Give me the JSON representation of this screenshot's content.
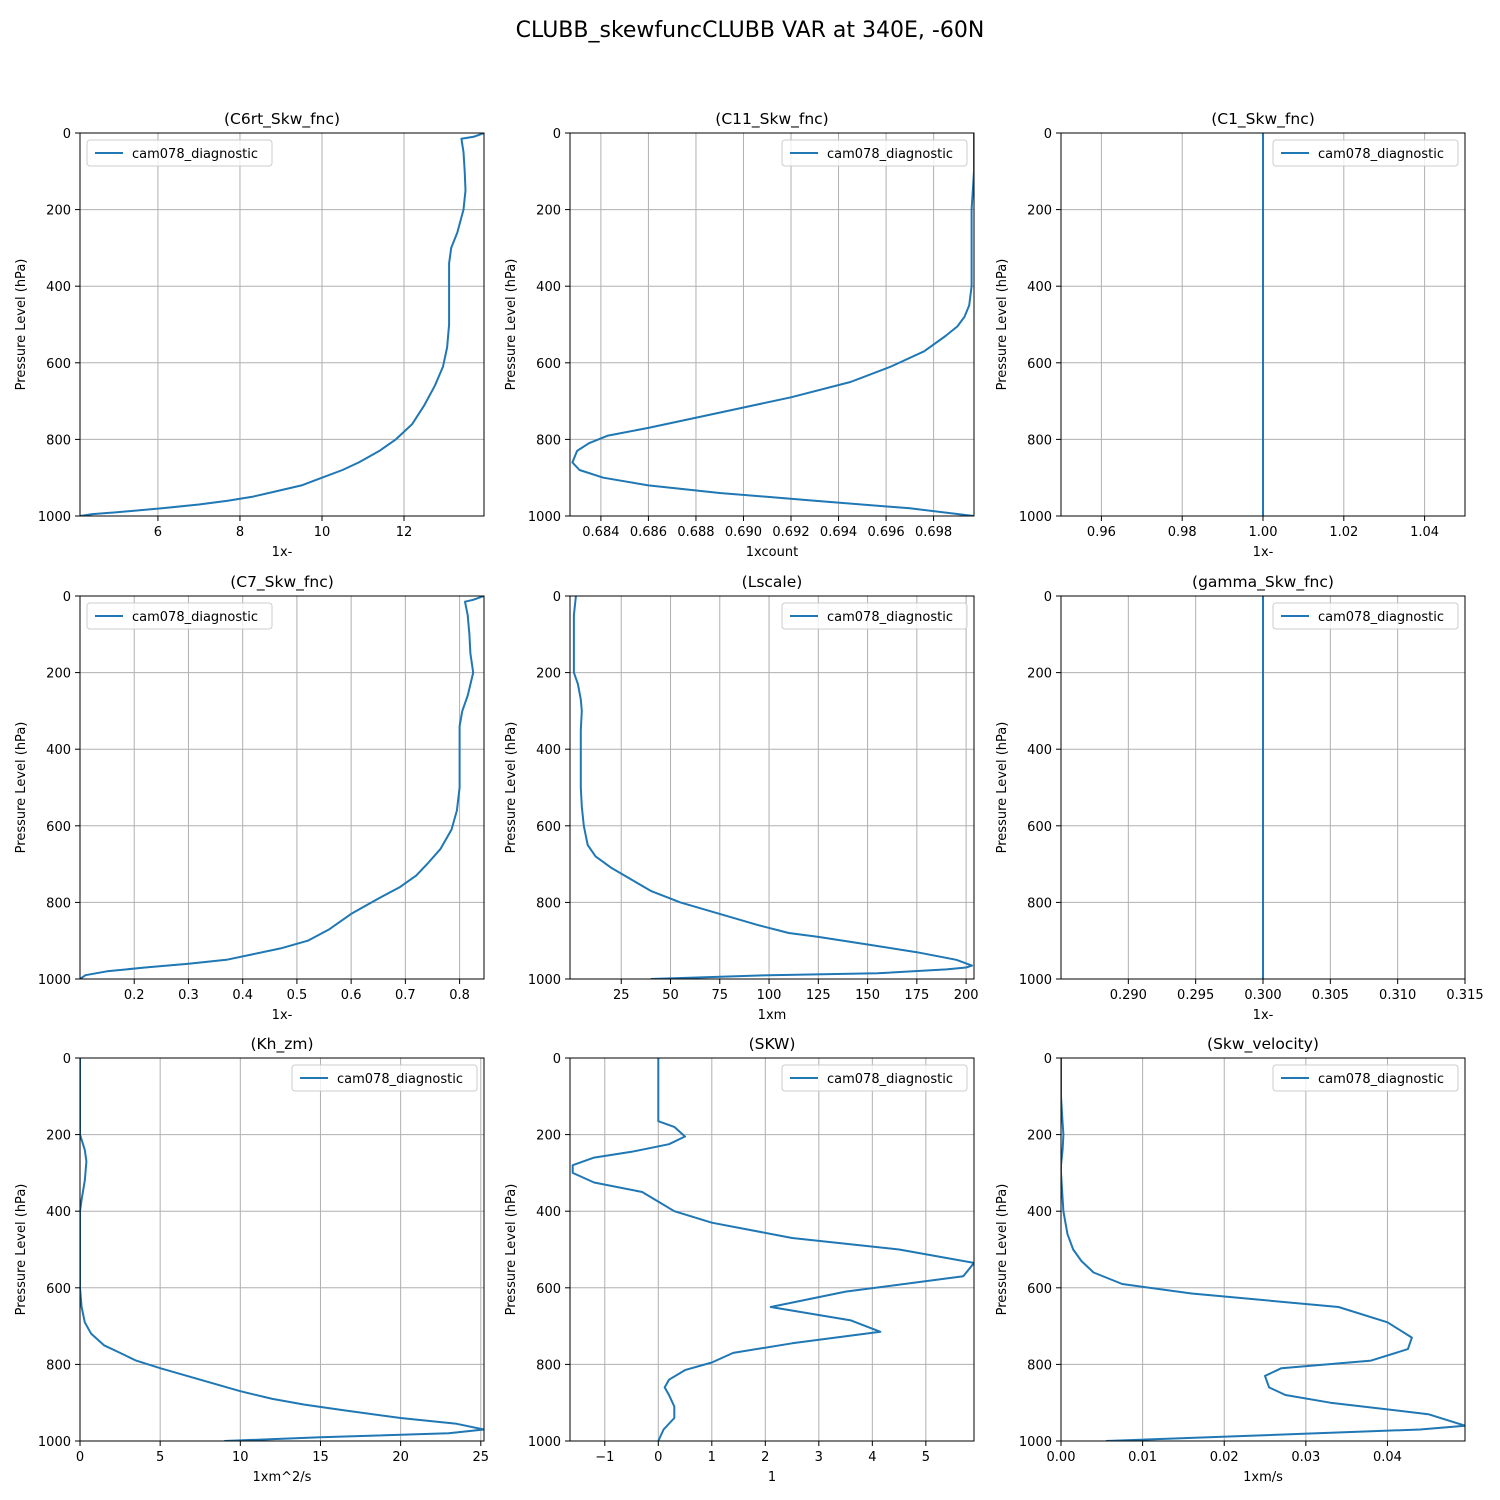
{
  "figure": {
    "suptitle": "CLUBB_skewfuncCLUBB VAR at 340E, -60N",
    "line_color": "#1f77b4",
    "grid_color": "#b0b0b0"
  },
  "chart_data": [
    {
      "type": "line",
      "title": "(C6rt_Skw_fnc)",
      "xlabel": "1x-",
      "ylabel": "Pressure Level (hPa)",
      "xlim": [
        4.1,
        13.95
      ],
      "ylim": [
        1000,
        0
      ],
      "xticks": [
        6,
        8,
        10,
        12
      ],
      "xticklabels": [
        "6",
        "8",
        "10",
        "12"
      ],
      "yticks": [
        0,
        200,
        400,
        600,
        800,
        1000
      ],
      "yticklabels": [
        "0",
        "200",
        "400",
        "600",
        "800",
        "1000"
      ],
      "grid": true,
      "legend_loc": "upper left",
      "series": [
        {
          "name": "cam078_diagnostic",
          "x": [
            13.95,
            13.7,
            13.4,
            13.45,
            13.48,
            13.5,
            13.45,
            13.3,
            13.15,
            13.1,
            13.1,
            13.1,
            13.1,
            13.05,
            12.95,
            12.75,
            12.5,
            12.2,
            11.8,
            11.4,
            10.9,
            10.5,
            10.0,
            9.5,
            8.9,
            8.3,
            7.7,
            7.0,
            6.1,
            5.0,
            4.4,
            4.1
          ],
          "y": [
            0,
            10,
            15,
            50,
            100,
            150,
            200,
            260,
            300,
            340,
            400,
            450,
            500,
            560,
            610,
            660,
            710,
            760,
            800,
            830,
            860,
            880,
            900,
            920,
            935,
            950,
            960,
            970,
            980,
            990,
            995,
            1000
          ]
        }
      ]
    },
    {
      "type": "line",
      "title": "(C11_Skw_fnc)",
      "xlabel": "1xcount",
      "ylabel": "Pressure Level (hPa)",
      "xlim": [
        0.6827,
        0.6997
      ],
      "ylim": [
        1000,
        0
      ],
      "xticks": [
        0.684,
        0.686,
        0.688,
        0.69,
        0.692,
        0.694,
        0.696,
        0.698
      ],
      "xticklabels": [
        "0.684",
        "0.686",
        "0.688",
        "0.690",
        "0.692",
        "0.694",
        "0.696",
        "0.698"
      ],
      "yticks": [
        0,
        200,
        400,
        600,
        800,
        1000
      ],
      "yticklabels": [
        "0",
        "200",
        "400",
        "600",
        "800",
        "1000"
      ],
      "grid": true,
      "legend_loc": "upper right",
      "series": [
        {
          "name": "cam078_diagnostic",
          "x": [
            0.6997,
            0.6997,
            0.6996,
            0.6996,
            0.6996,
            0.6995,
            0.6993,
            0.699,
            0.6985,
            0.6976,
            0.6962,
            0.6945,
            0.692,
            0.689,
            0.686,
            0.6843,
            0.6835,
            0.683,
            0.6828,
            0.6831,
            0.6841,
            0.686,
            0.689,
            0.693,
            0.697,
            0.6997
          ],
          "y": [
            0,
            100,
            200,
            300,
            400,
            450,
            480,
            505,
            530,
            570,
            610,
            650,
            690,
            730,
            770,
            790,
            810,
            830,
            860,
            880,
            900,
            920,
            940,
            960,
            980,
            1000
          ]
        }
      ]
    },
    {
      "type": "line",
      "title": "(C1_Skw_fnc)",
      "xlabel": "1x-",
      "ylabel": "Pressure Level (hPa)",
      "xlim": [
        0.95,
        1.05
      ],
      "ylim": [
        1000,
        0
      ],
      "xticks": [
        0.96,
        0.98,
        1.0,
        1.02,
        1.04
      ],
      "xticklabels": [
        "0.96",
        "0.98",
        "1.00",
        "1.02",
        "1.04"
      ],
      "yticks": [
        0,
        200,
        400,
        600,
        800,
        1000
      ],
      "yticklabels": [
        "0",
        "200",
        "400",
        "600",
        "800",
        "1000"
      ],
      "grid": true,
      "legend_loc": "upper right",
      "series": [
        {
          "name": "cam078_diagnostic",
          "x": [
            1.0,
            1.0
          ],
          "y": [
            0,
            1000
          ]
        }
      ]
    },
    {
      "type": "line",
      "title": "(C7_Skw_fnc)",
      "xlabel": "1x-",
      "ylabel": "Pressure Level (hPa)",
      "xlim": [
        0.1,
        0.845
      ],
      "ylim": [
        1000,
        0
      ],
      "xticks": [
        0.2,
        0.3,
        0.4,
        0.5,
        0.6,
        0.7,
        0.8
      ],
      "xticklabels": [
        "0.2",
        "0.3",
        "0.4",
        "0.5",
        "0.6",
        "0.7",
        "0.8"
      ],
      "yticks": [
        0,
        200,
        400,
        600,
        800,
        1000
      ],
      "yticklabels": [
        "0",
        "200",
        "400",
        "600",
        "800",
        "1000"
      ],
      "grid": true,
      "legend_loc": "upper left",
      "series": [
        {
          "name": "cam078_diagnostic",
          "x": [
            0.845,
            0.825,
            0.81,
            0.815,
            0.818,
            0.82,
            0.825,
            0.815,
            0.805,
            0.8,
            0.8,
            0.8,
            0.8,
            0.795,
            0.785,
            0.765,
            0.74,
            0.72,
            0.69,
            0.65,
            0.6,
            0.56,
            0.52,
            0.47,
            0.42,
            0.37,
            0.3,
            0.22,
            0.15,
            0.11,
            0.1
          ],
          "y": [
            0,
            10,
            15,
            50,
            100,
            150,
            200,
            260,
            300,
            340,
            400,
            450,
            500,
            560,
            610,
            660,
            700,
            730,
            760,
            790,
            830,
            870,
            900,
            920,
            935,
            950,
            960,
            970,
            980,
            990,
            1000
          ]
        }
      ]
    },
    {
      "type": "line",
      "title": "(Lscale)",
      "xlabel": "1xm",
      "ylabel": "Pressure Level (hPa)",
      "xlim": [
        -1,
        204
      ],
      "ylim": [
        1000,
        0
      ],
      "xticks": [
        25,
        50,
        75,
        100,
        125,
        150,
        175,
        200
      ],
      "xticklabels": [
        "25",
        "50",
        "75",
        "100",
        "125",
        "150",
        "175",
        "200"
      ],
      "yticks": [
        0,
        200,
        400,
        600,
        800,
        1000
      ],
      "yticklabels": [
        "0",
        "200",
        "400",
        "600",
        "800",
        "1000"
      ],
      "grid": true,
      "legend_loc": "upper right",
      "series": [
        {
          "name": "cam078_diagnostic",
          "x": [
            2,
            1,
            1,
            1,
            3,
            4.5,
            5,
            4.5,
            4.5,
            4.5,
            4.5,
            5,
            6,
            8,
            12,
            20,
            30,
            40,
            55,
            75,
            95,
            110,
            125,
            150,
            175,
            195,
            203,
            200,
            190,
            155,
            100,
            40
          ],
          "y": [
            0,
            50,
            100,
            200,
            230,
            270,
            300,
            350,
            400,
            450,
            500,
            550,
            600,
            650,
            680,
            710,
            740,
            770,
            800,
            830,
            860,
            880,
            890,
            910,
            930,
            950,
            965,
            970,
            975,
            985,
            990,
            1000
          ]
        }
      ]
    },
    {
      "type": "line",
      "title": "(gamma_Skw_fnc)",
      "xlabel": "1x-",
      "ylabel": "Pressure Level (hPa)",
      "xlim": [
        0.285,
        0.315
      ],
      "ylim": [
        1000,
        0
      ],
      "xticks": [
        0.29,
        0.295,
        0.3,
        0.305,
        0.31,
        0.315
      ],
      "xticklabels": [
        "0.290",
        "0.295",
        "0.300",
        "0.305",
        "0.310",
        "0.315"
      ],
      "yticks": [
        0,
        200,
        400,
        600,
        800,
        1000
      ],
      "yticklabels": [
        "0",
        "200",
        "400",
        "600",
        "800",
        "1000"
      ],
      "grid": true,
      "legend_loc": "upper right",
      "series": [
        {
          "name": "cam078_diagnostic",
          "x": [
            0.3,
            0.3
          ],
          "y": [
            0,
            1000
          ]
        }
      ]
    },
    {
      "type": "line",
      "title": "(Kh_zm)",
      "xlabel": "1xm^2/s",
      "ylabel": "Pressure Level (hPa)",
      "xlim": [
        0,
        25.2
      ],
      "ylim": [
        1000,
        0
      ],
      "xticks": [
        0,
        5,
        10,
        15,
        20,
        25
      ],
      "xticklabels": [
        "0",
        "5",
        "10",
        "15",
        "20",
        "25"
      ],
      "yticks": [
        0,
        200,
        400,
        600,
        800,
        1000
      ],
      "yticklabels": [
        "0",
        "200",
        "400",
        "600",
        "800",
        "1000"
      ],
      "grid": true,
      "legend_loc": "upper right",
      "series": [
        {
          "name": "cam078_diagnostic",
          "x": [
            0,
            0,
            0.3,
            0.4,
            0.3,
            0.1,
            0,
            0,
            0,
            0.1,
            0.3,
            0.7,
            1.5,
            2.5,
            3.5,
            5,
            7.5,
            10,
            12,
            14,
            16.5,
            20,
            23.5,
            25.2,
            23,
            15,
            9
          ],
          "y": [
            0,
            200,
            240,
            270,
            320,
            370,
            400,
            500,
            600,
            650,
            690,
            720,
            750,
            770,
            790,
            810,
            840,
            870,
            890,
            905,
            920,
            940,
            955,
            970,
            980,
            990,
            1000
          ]
        }
      ]
    },
    {
      "type": "line",
      "title": "(SKW)",
      "xlabel": "1",
      "ylabel": "Pressure Level (hPa)",
      "xlim": [
        -1.65,
        5.9
      ],
      "ylim": [
        1000,
        0
      ],
      "xticks": [
        -1,
        0,
        1,
        2,
        3,
        4,
        5
      ],
      "xticklabels": [
        "−1",
        "0",
        "1",
        "2",
        "3",
        "4",
        "5"
      ],
      "yticks": [
        0,
        200,
        400,
        600,
        800,
        1000
      ],
      "yticklabels": [
        "0",
        "200",
        "400",
        "600",
        "800",
        "1000"
      ],
      "grid": true,
      "legend_loc": "upper right",
      "series": [
        {
          "name": "cam078_diagnostic",
          "x": [
            0,
            0,
            0.3,
            0.5,
            0.2,
            -0.5,
            -1.2,
            -1.6,
            -1.6,
            -1.2,
            -0.3,
            0,
            0.3,
            1,
            2.5,
            4.5,
            5.9,
            5.7,
            3.5,
            2.1,
            3.6,
            4.15,
            2.5,
            1.4,
            1.0,
            0.5,
            0.2,
            0.12,
            0.2,
            0.3,
            0.3,
            0.1,
            0
          ],
          "y": [
            0,
            165,
            180,
            205,
            225,
            245,
            260,
            280,
            300,
            325,
            350,
            375,
            400,
            430,
            470,
            500,
            535,
            570,
            610,
            650,
            685,
            715,
            745,
            770,
            795,
            815,
            840,
            860,
            880,
            910,
            940,
            970,
            1000
          ]
        }
      ]
    },
    {
      "type": "line",
      "title": "(Skw_velocity)",
      "xlabel": "1xm/s",
      "ylabel": "Pressure Level (hPa)",
      "xlim": [
        0,
        0.0495
      ],
      "ylim": [
        1000,
        0
      ],
      "xticks": [
        0,
        0.01,
        0.02,
        0.03,
        0.04
      ],
      "xticklabels": [
        "0.00",
        "0.01",
        "0.02",
        "0.03",
        "0.04"
      ],
      "yticks": [
        0,
        200,
        400,
        600,
        800,
        1000
      ],
      "yticklabels": [
        "0",
        "200",
        "400",
        "600",
        "800",
        "1000"
      ],
      "grid": true,
      "legend_loc": "upper right",
      "series": [
        {
          "name": "cam078_diagnostic",
          "x": [
            0,
            0,
            0.0002,
            0.0003,
            0.0002,
            0,
            0,
            0.0003,
            0.0008,
            0.0015,
            0.0025,
            0.004,
            0.0075,
            0.016,
            0.034,
            0.04,
            0.043,
            0.0425,
            0.038,
            0.027,
            0.025,
            0.0255,
            0.0275,
            0.033,
            0.045,
            0.0495,
            0.044,
            0.0055
          ],
          "y": [
            0,
            100,
            170,
            200,
            240,
            280,
            300,
            400,
            460,
            500,
            530,
            560,
            590,
            615,
            650,
            690,
            730,
            760,
            790,
            810,
            830,
            860,
            880,
            900,
            930,
            960,
            970,
            1000
          ]
        }
      ]
    }
  ]
}
